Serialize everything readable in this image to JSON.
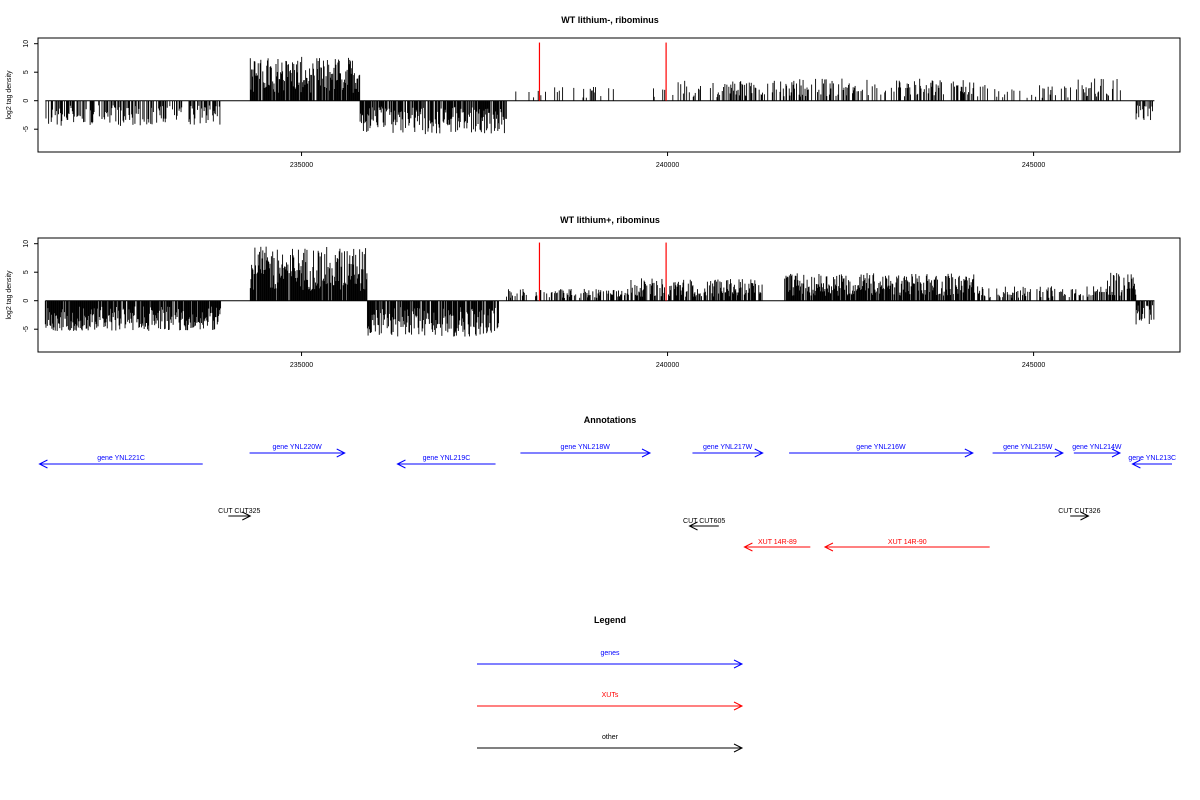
{
  "chart_data": [
    {
      "type": "bar",
      "title": "WT lithium-, ribominus",
      "ylabel": "log2 tag density",
      "xlim": [
        231400,
        247000
      ],
      "ylim": [
        -9,
        11
      ],
      "yticks": [
        -5,
        0,
        5,
        10
      ],
      "xticks": [
        235000,
        240000,
        245000
      ],
      "regions": [
        {
          "start": 231500,
          "end": 233900,
          "sign": -1,
          "amp": 3.2,
          "density": 0.55
        },
        {
          "start": 234300,
          "end": 235800,
          "sign": 1,
          "amp": 5.5,
          "density": 0.9
        },
        {
          "start": 235800,
          "end": 237800,
          "sign": -1,
          "amp": 4.2,
          "density": 0.75
        },
        {
          "start": 237900,
          "end": 240000,
          "sign": 1,
          "amp": 1.8,
          "density": 0.08
        },
        {
          "start": 240000,
          "end": 241500,
          "sign": 1,
          "amp": 2.5,
          "density": 0.35
        },
        {
          "start": 241500,
          "end": 244200,
          "sign": 1,
          "amp": 2.8,
          "density": 0.4
        },
        {
          "start": 244200,
          "end": 245600,
          "sign": 1,
          "amp": 2.0,
          "density": 0.2
        },
        {
          "start": 245600,
          "end": 246200,
          "sign": 1,
          "amp": 2.8,
          "density": 0.4
        },
        {
          "start": 246400,
          "end": 246650,
          "sign": -1,
          "amp": 2.5,
          "density": 0.6
        }
      ],
      "marker_lines": [
        {
          "x": 238250,
          "y": 10.2,
          "color": "#ff0000"
        },
        {
          "x": 239980,
          "y": 10.2,
          "color": "#ff0000"
        }
      ]
    },
    {
      "type": "bar",
      "title": "WT lithium+, ribominus",
      "ylabel": "log2 tag density",
      "xlim": [
        231400,
        247000
      ],
      "ylim": [
        -9,
        11
      ],
      "yticks": [
        -5,
        0,
        5,
        10
      ],
      "xticks": [
        235000,
        240000,
        245000
      ],
      "regions": [
        {
          "start": 231500,
          "end": 233900,
          "sign": -1,
          "amp": 3.8,
          "density": 0.9
        },
        {
          "start": 234300,
          "end": 235900,
          "sign": 1,
          "amp": 6.8,
          "density": 0.95
        },
        {
          "start": 235900,
          "end": 237700,
          "sign": -1,
          "amp": 4.5,
          "density": 0.85
        },
        {
          "start": 237800,
          "end": 239500,
          "sign": 1,
          "amp": 1.5,
          "density": 0.4
        },
        {
          "start": 239500,
          "end": 241300,
          "sign": 1,
          "amp": 2.8,
          "density": 0.7
        },
        {
          "start": 241600,
          "end": 244200,
          "sign": 1,
          "amp": 3.5,
          "density": 0.85
        },
        {
          "start": 244200,
          "end": 246000,
          "sign": 1,
          "amp": 1.8,
          "density": 0.45
        },
        {
          "start": 246000,
          "end": 246400,
          "sign": 1,
          "amp": 3.5,
          "density": 0.7
        },
        {
          "start": 246400,
          "end": 246650,
          "sign": -1,
          "amp": 3.0,
          "density": 0.7
        }
      ],
      "marker_lines": [
        {
          "x": 238250,
          "y": 10.2,
          "color": "#ff0000"
        },
        {
          "x": 239980,
          "y": 10.2,
          "color": "#ff0000"
        }
      ]
    }
  ],
  "annotations": {
    "title": "Annotations",
    "colors": {
      "genes": "#0000ff",
      "xuts": "#ff0000",
      "other": "#000000"
    },
    "genes": [
      {
        "label": "gene YNL221C",
        "start": 231420,
        "end": 233650,
        "strand": "-"
      },
      {
        "label": "gene YNL220W",
        "start": 234290,
        "end": 235590,
        "strand": "+"
      },
      {
        "label": "gene YNL219C",
        "start": 236310,
        "end": 237650,
        "strand": "-"
      },
      {
        "label": "gene YNL218W",
        "start": 237990,
        "end": 239760,
        "strand": "+"
      },
      {
        "label": "gene YNL217W",
        "start": 240340,
        "end": 241300,
        "strand": "+"
      },
      {
        "label": "gene YNL216W",
        "start": 241660,
        "end": 244170,
        "strand": "+"
      },
      {
        "label": "gene YNL215W",
        "start": 244440,
        "end": 245400,
        "strand": "+"
      },
      {
        "label": "gene YNL214W",
        "start": 245550,
        "end": 246180,
        "strand": "+"
      },
      {
        "label": "gene YNL213C",
        "start": 246350,
        "end": 247000,
        "strand": "-"
      }
    ],
    "xuts": [
      {
        "label": "XUT 14R-89",
        "start": 241050,
        "end": 241950,
        "strand": "-"
      },
      {
        "label": "XUT 14R-90",
        "start": 242150,
        "end": 244400,
        "strand": "-"
      }
    ],
    "other": [
      {
        "label": "CUT CUT325",
        "start": 234000,
        "end": 234300,
        "strand": "+"
      },
      {
        "label": "CUT CUT605",
        "start": 240300,
        "end": 240700,
        "strand": "-"
      },
      {
        "label": "CUT CUT326",
        "start": 245500,
        "end": 245750,
        "strand": "+"
      }
    ]
  },
  "legend": {
    "title": "Legend",
    "items": [
      {
        "label": "genes",
        "color": "#0000ff"
      },
      {
        "label": "XUTs",
        "color": "#ff0000"
      },
      {
        "label": "other",
        "color": "#000000"
      }
    ]
  }
}
